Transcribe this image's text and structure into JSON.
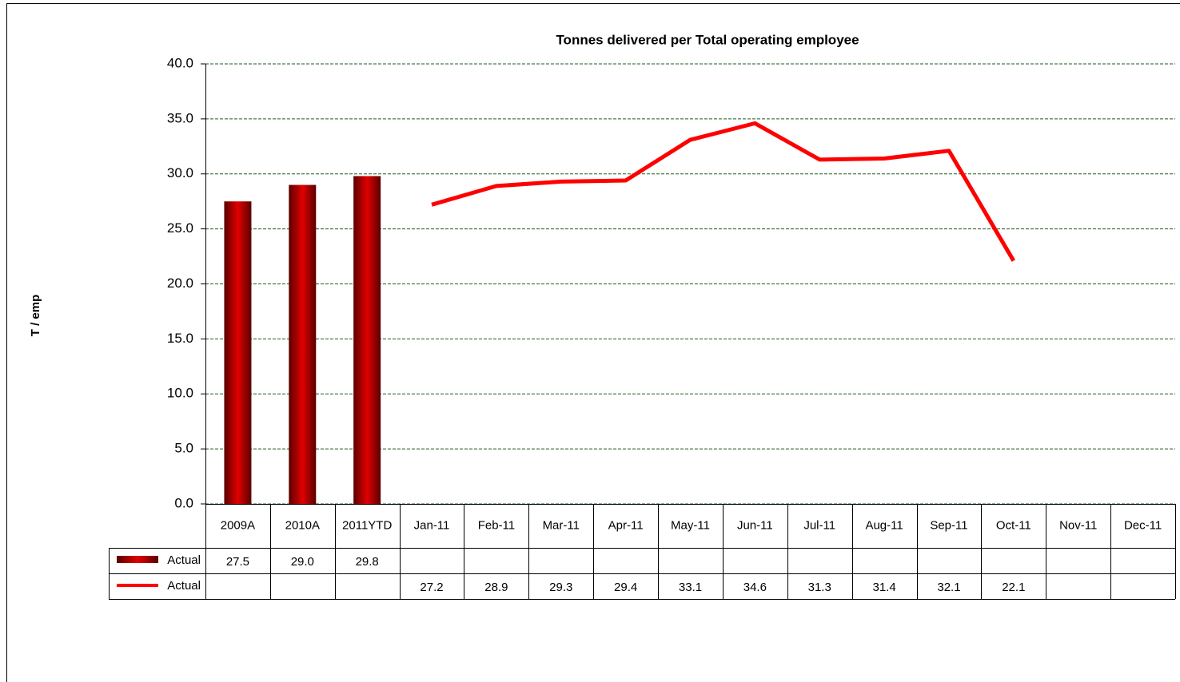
{
  "chart_data": {
    "type": "bar-line-table",
    "title": "Tonnes delivered per Total operating employee",
    "y_label": "T / emp",
    "categories": [
      "2009A",
      "2010A",
      "2011YTD",
      "Jan-11",
      "Feb-11",
      "Mar-11",
      "Apr-11",
      "May-11",
      "Jun-11",
      "Jul-11",
      "Aug-11",
      "Sep-11",
      "Oct-11",
      "Nov-11",
      "Dec-11"
    ],
    "series": [
      {
        "name": "Actual",
        "type": "bar",
        "color": "#e00000",
        "values": [
          27.5,
          29.0,
          29.8,
          null,
          null,
          null,
          null,
          null,
          null,
          null,
          null,
          null,
          null,
          null,
          null
        ],
        "value_labels": [
          "27.5",
          "29.0",
          "29.8",
          null,
          null,
          null,
          null,
          null,
          null,
          null,
          null,
          null,
          null,
          null,
          null
        ]
      },
      {
        "name": "Actual",
        "type": "line",
        "color": "#ff0000",
        "values": [
          null,
          null,
          null,
          27.2,
          28.9,
          29.3,
          29.4,
          33.1,
          34.6,
          31.3,
          31.4,
          32.1,
          22.1,
          null,
          null
        ]
      }
    ],
    "ylim": [
      0,
      40
    ],
    "yticks": [
      {
        "value": 0,
        "label": "0.0"
      },
      {
        "value": 5,
        "label": "5.0"
      },
      {
        "value": 10,
        "label": "10.0"
      },
      {
        "value": 15,
        "label": "15.0"
      },
      {
        "value": 20,
        "label": "20.0"
      },
      {
        "value": 25,
        "label": "25.0"
      },
      {
        "value": 30,
        "label": "30.0"
      },
      {
        "value": 35,
        "label": "35.0"
      },
      {
        "value": 40,
        "label": "40.0"
      }
    ],
    "grid": true,
    "grid_color": "#1e5c1e"
  }
}
